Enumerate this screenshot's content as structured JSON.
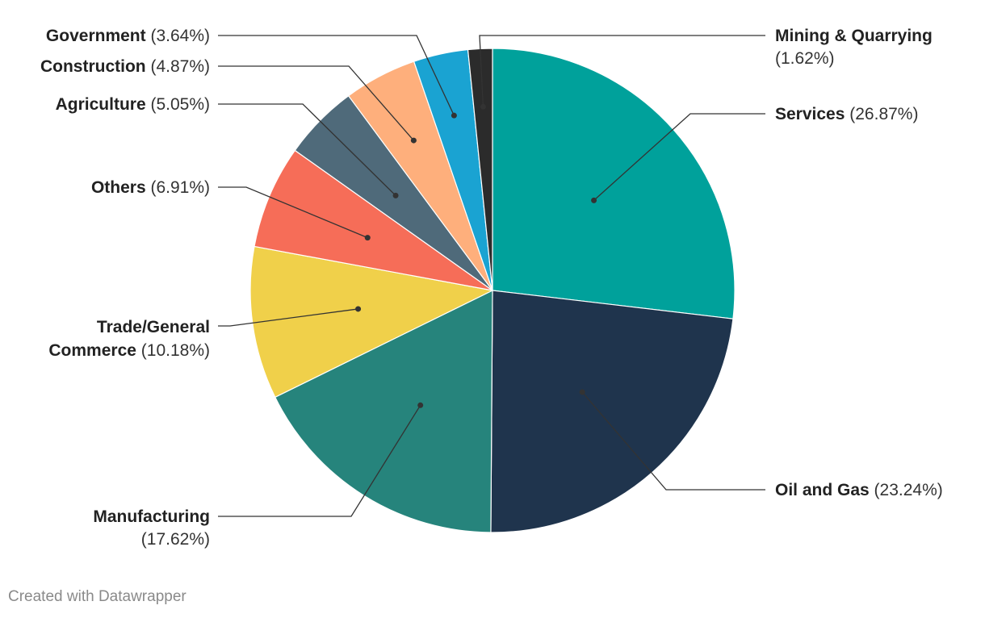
{
  "chart_data": {
    "type": "pie",
    "unit": "%",
    "slices": [
      {
        "name": "Services",
        "value": 26.87,
        "display": "(26.87%)",
        "color": "#00a19b"
      },
      {
        "name": "Oil and Gas",
        "value": 23.24,
        "display": "(23.24%)",
        "color": "#1f344d"
      },
      {
        "name": "Manufacturing",
        "value": 17.62,
        "display": "(17.62%)",
        "color": "#26847c"
      },
      {
        "name": "Trade/General Commerce",
        "value": 10.18,
        "display": "(10.18%)",
        "color": "#f0d04a"
      },
      {
        "name": "Others",
        "value": 6.91,
        "display": "(6.91%)",
        "color": "#f66d58"
      },
      {
        "name": "Agriculture",
        "value": 5.05,
        "display": "(5.05%)",
        "color": "#4f6a7a"
      },
      {
        "name": "Construction",
        "value": 4.87,
        "display": "(4.87%)",
        "color": "#feaf7c"
      },
      {
        "name": "Government",
        "value": 3.64,
        "display": "(3.64%)",
        "color": "#1aa3d2"
      },
      {
        "name": "Mining & Quarrying",
        "value": 1.62,
        "display": "(1.62%)",
        "color": "#2b2b2b"
      }
    ]
  },
  "credit": "Created with Datawrapper"
}
